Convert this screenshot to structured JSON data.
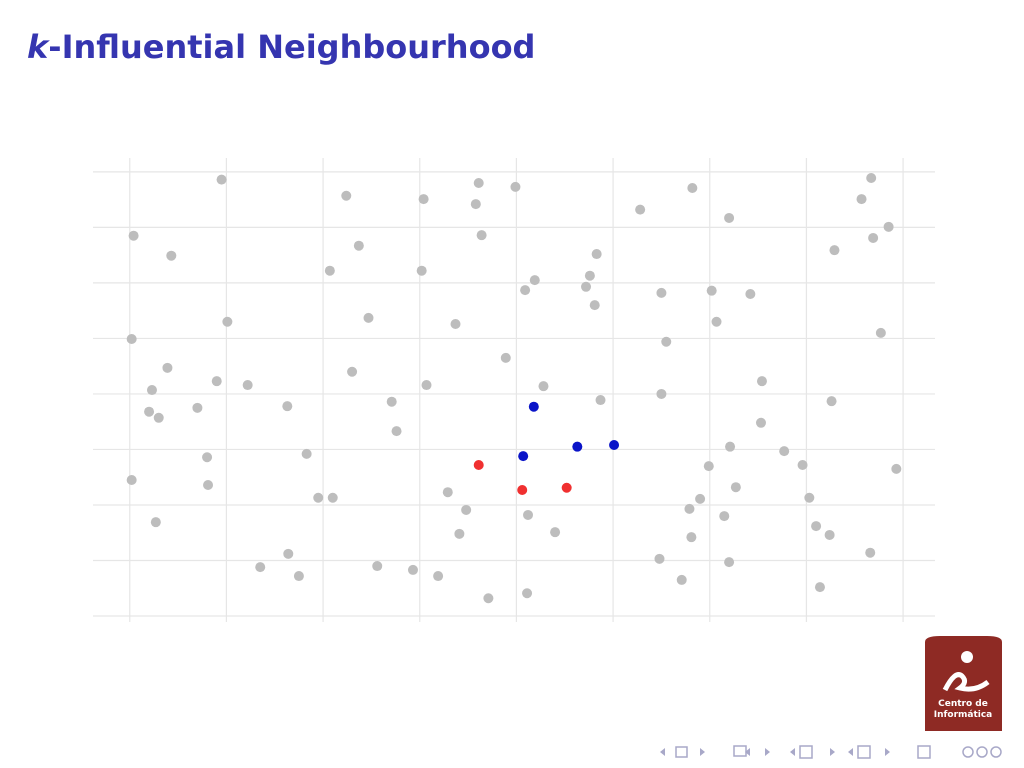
{
  "chart_data": {
    "type": "scatter",
    "title": [
      "k",
      "-Influential Neighbourhood"
    ],
    "xlim": [
      -0.38,
      8.33
    ],
    "ylim": [
      0,
      8.25
    ],
    "xticks": [
      0,
      1,
      2,
      3,
      4,
      5,
      6,
      7,
      8
    ],
    "yticks": [
      0,
      1,
      2,
      3,
      4,
      5,
      6,
      7,
      8
    ],
    "grid": true,
    "series": [
      {
        "color": "#bdbdbd",
        "x": [
          0.95,
          0.04,
          0.43,
          2.24,
          3.04,
          3.61,
          3.58,
          3.99,
          3.64,
          2.37,
          2.07,
          3.02,
          1.01,
          0.02,
          2.47,
          3.37,
          0.39,
          0.23,
          0.9,
          1.22,
          0.2,
          0.3,
          0.7,
          1.63,
          2.3,
          3.07,
          2.71,
          2.76,
          3.89,
          4.28,
          4.09,
          4.19,
          4.72,
          4.76,
          4.83,
          4.81,
          5.28,
          5.82,
          6.2,
          5.5,
          6.02,
          6.42,
          6.07,
          5.55,
          7.67,
          7.57,
          7.85,
          7.69,
          7.29,
          7.77,
          6.54,
          5.5,
          4.87,
          7.26,
          6.53,
          6.21,
          6.77,
          5.99,
          6.96,
          7.93,
          6.27,
          5.9,
          5.79,
          6.15,
          7.03,
          7.1,
          7.24,
          5.81,
          6.2,
          5.48,
          5.71,
          7.66,
          7.14,
          0.8,
          0.02,
          0.81,
          0.27,
          1.83,
          1.95,
          2.1,
          1.64,
          1.35,
          1.75,
          2.56,
          2.93,
          3.19,
          3.29,
          3.48,
          3.41,
          4.12,
          4.4,
          3.71,
          4.11
        ],
        "values": [
          7.86,
          6.85,
          6.49,
          7.57,
          7.51,
          7.8,
          7.42,
          7.73,
          6.86,
          6.67,
          6.22,
          6.22,
          5.3,
          4.99,
          5.37,
          5.26,
          4.47,
          4.07,
          4.23,
          4.16,
          3.68,
          3.57,
          3.75,
          3.78,
          4.4,
          4.16,
          3.86,
          3.33,
          4.65,
          4.14,
          5.87,
          6.05,
          5.93,
          6.13,
          6.52,
          5.6,
          7.32,
          7.71,
          7.17,
          5.82,
          5.86,
          5.8,
          5.3,
          4.94,
          7.89,
          7.51,
          7.01,
          6.81,
          6.59,
          5.1,
          4.23,
          4.0,
          3.89,
          3.87,
          3.48,
          3.05,
          2.97,
          2.7,
          2.72,
          2.65,
          2.32,
          2.11,
          1.93,
          1.8,
          2.13,
          1.62,
          1.46,
          1.42,
          0.97,
          1.03,
          0.65,
          1.14,
          0.52,
          2.86,
          2.45,
          2.36,
          1.69,
          2.92,
          2.13,
          2.13,
          1.12,
          0.88,
          0.72,
          0.9,
          0.83,
          0.72,
          2.23,
          1.91,
          1.48,
          1.82,
          1.51,
          0.32,
          0.41
        ]
      },
      {
        "color": "#f03030",
        "x": [
          3.61,
          4.06,
          4.52
        ],
        "values": [
          2.72,
          2.27,
          2.31
        ]
      },
      {
        "color": "#0a14c8",
        "x": [
          4.18,
          4.07,
          4.63,
          5.01
        ],
        "values": [
          3.77,
          2.88,
          3.05,
          3.08
        ]
      }
    ]
  },
  "logo": {
    "lines": [
      "Centro de",
      "Informática"
    ]
  }
}
